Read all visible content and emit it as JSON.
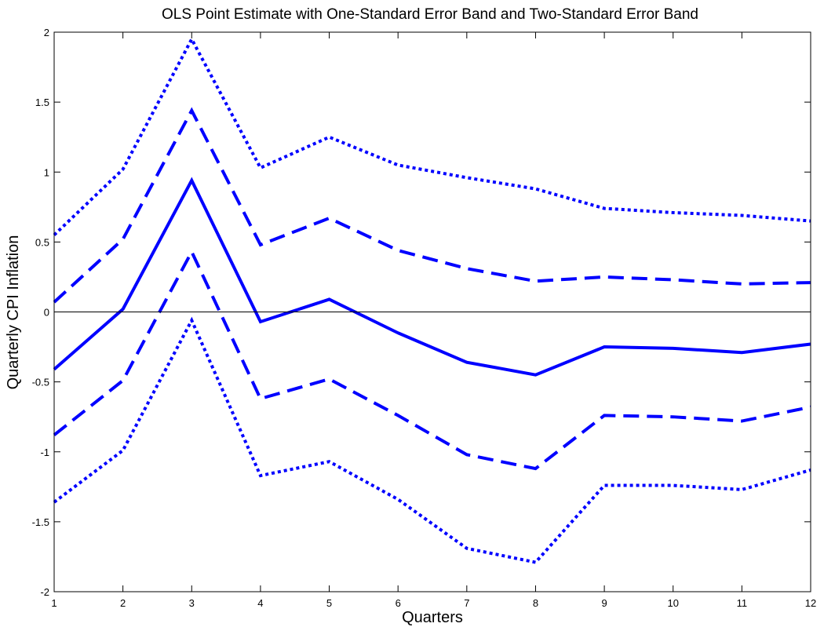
{
  "chart_data": {
    "type": "line",
    "title": "OLS Point Estimate with One-Standard Error Band and Two-Standard Error Band",
    "xlabel": "Quarters",
    "ylabel": "Quarterly CPI Inflation",
    "x": [
      1,
      2,
      3,
      4,
      5,
      6,
      7,
      8,
      9,
      10,
      11,
      12
    ],
    "xlim": [
      1,
      12
    ],
    "ylim": [
      -2,
      2
    ],
    "x_ticks": [
      "1",
      "2",
      "3",
      "4",
      "5",
      "6",
      "7",
      "8",
      "9",
      "10",
      "11",
      "12"
    ],
    "y_ticks": [
      "-2",
      "-1.5",
      "-1",
      "-0.5",
      "0",
      "0.5",
      "1",
      "1.5",
      "2"
    ],
    "zero_line": true,
    "grid": false,
    "color": "#0000ff",
    "series": [
      {
        "style": "dotted",
        "values": [
          0.55,
          1.02,
          1.95,
          1.03,
          1.25,
          1.05,
          0.96,
          0.88,
          0.74,
          0.71,
          0.69,
          0.65
        ]
      },
      {
        "style": "dashed",
        "values": [
          0.07,
          0.52,
          1.44,
          0.48,
          0.67,
          0.44,
          0.31,
          0.22,
          0.25,
          0.23,
          0.2,
          0.21
        ]
      },
      {
        "style": "solid",
        "values": [
          -0.41,
          0.02,
          0.94,
          -0.07,
          0.09,
          -0.15,
          -0.36,
          -0.45,
          -0.25,
          -0.26,
          -0.29,
          -0.23
        ]
      },
      {
        "style": "dashed",
        "values": [
          -0.88,
          -0.49,
          0.43,
          -0.62,
          -0.48,
          -0.74,
          -1.02,
          -1.12,
          -0.74,
          -0.75,
          -0.78,
          -0.68
        ]
      },
      {
        "style": "dotted",
        "values": [
          -1.36,
          -0.99,
          -0.06,
          -1.17,
          -1.07,
          -1.34,
          -1.69,
          -1.79,
          -1.24,
          -1.24,
          -1.27,
          -1.13
        ]
      }
    ]
  }
}
